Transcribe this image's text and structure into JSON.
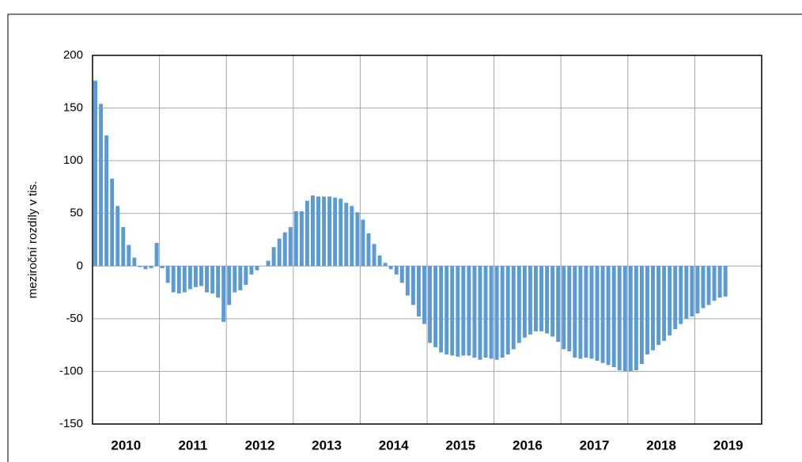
{
  "chart_data": {
    "type": "bar",
    "y_label": "meziroční rozdíly v tis.",
    "groups": [
      "2010",
      "2011",
      "2012",
      "2013",
      "2014",
      "2015",
      "2016",
      "2017",
      "2018",
      "2019"
    ],
    "values": [
      176,
      154,
      124,
      83,
      57,
      37,
      20,
      8,
      -1,
      -3,
      -2,
      22,
      -2,
      -16,
      -25,
      -26,
      -25,
      -22,
      -20,
      -19,
      -25,
      -26,
      -30,
      -53,
      -37,
      -25,
      -23,
      -18,
      -8,
      -4,
      0,
      5,
      18,
      26,
      32,
      37,
      52,
      52,
      62,
      67,
      66,
      66,
      66,
      65,
      64,
      60,
      57,
      51,
      44,
      31,
      21,
      10,
      3,
      -3,
      -8,
      -16,
      -28,
      -37,
      -48,
      -55,
      -73,
      -77,
      -82,
      -84,
      -85,
      -86,
      -85,
      -85,
      -87,
      -89,
      -87,
      -88,
      -89,
      -87,
      -84,
      -79,
      -73,
      -68,
      -65,
      -62,
      -62,
      -64,
      -67,
      -72,
      -79,
      -81,
      -87,
      -88,
      -87,
      -88,
      -90,
      -92,
      -94,
      -96,
      -99,
      -100,
      -100,
      -99,
      -93,
      -84,
      -80,
      -75,
      -71,
      -66,
      -60,
      -55,
      -50,
      -48,
      -45,
      -40,
      -37,
      -33,
      -30,
      -29,
      null,
      null,
      null,
      null,
      null,
      null
    ],
    "color": "#5b9bd5",
    "ylim": [
      -150,
      200
    ],
    "yticks": [
      -150,
      -100,
      -50,
      0,
      50,
      100,
      150,
      200
    ],
    "grid": true
  }
}
